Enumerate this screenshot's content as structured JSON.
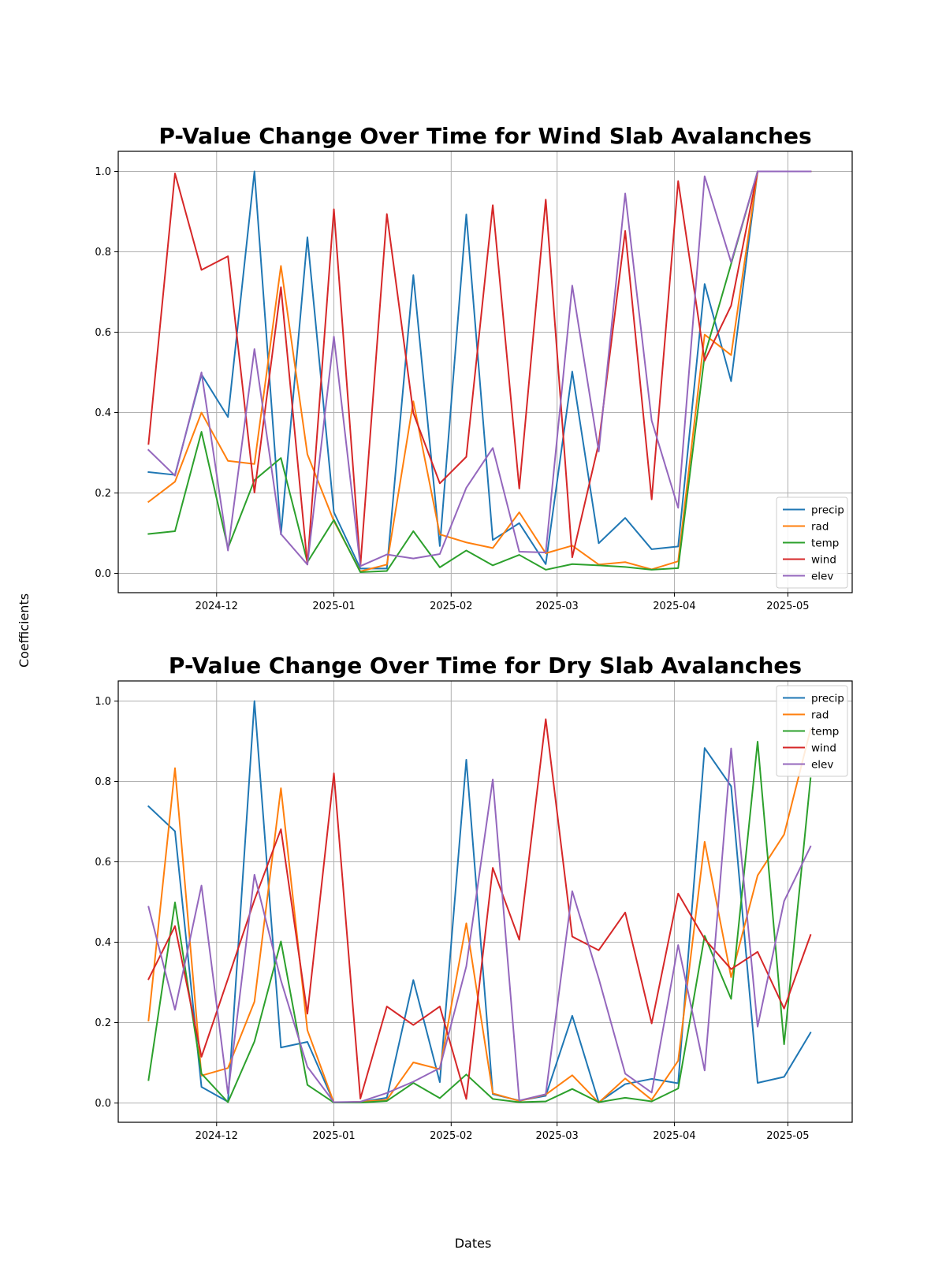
{
  "figure": {
    "xlabel": "Dates",
    "ylabel": "Coefficients"
  },
  "chart_data": [
    {
      "type": "line",
      "title": "P-Value Change Over Time for Wind Slab Avalanches",
      "x": [
        "2024-11-13",
        "2024-11-20",
        "2024-11-27",
        "2024-12-04",
        "2024-12-11",
        "2024-12-18",
        "2024-12-25",
        "2025-01-01",
        "2025-01-08",
        "2025-01-15",
        "2025-01-22",
        "2025-01-29",
        "2025-02-05",
        "2025-02-12",
        "2025-02-19",
        "2025-02-26",
        "2025-03-05",
        "2025-03-12",
        "2025-03-19",
        "2025-03-26",
        "2025-04-02",
        "2025-04-09",
        "2025-04-16",
        "2025-04-23",
        "2025-04-30",
        "2025-05-07"
      ],
      "x_ticks": [
        "2024-12",
        "2025-01",
        "2025-02",
        "2025-03",
        "2025-04",
        "2025-05"
      ],
      "y_ticks": [
        "0.0",
        "0.2",
        "0.4",
        "0.6",
        "0.8",
        "1.0"
      ],
      "ylim": [
        -0.048,
        1.05
      ],
      "xlim": [
        "2024-11-05",
        "2025-05-18"
      ],
      "grid": true,
      "legend_position": "lower-right",
      "series": [
        {
          "name": "precip",
          "color": "#1f77b4",
          "values": [
            0.252,
            0.245,
            0.495,
            0.389,
            1.0,
            0.097,
            0.836,
            0.152,
            0.012,
            0.012,
            0.742,
            0.068,
            0.893,
            0.083,
            0.125,
            0.023,
            0.502,
            0.075,
            0.138,
            0.06,
            0.067,
            0.72,
            0.478,
            1.0,
            1.0,
            1.0
          ]
        },
        {
          "name": "rad",
          "color": "#ff7f0e",
          "values": [
            0.178,
            0.228,
            0.4,
            0.28,
            0.272,
            0.765,
            0.296,
            0.13,
            0.005,
            0.022,
            0.428,
            0.097,
            0.077,
            0.063,
            0.152,
            0.05,
            0.069,
            0.022,
            0.028,
            0.01,
            0.03,
            0.594,
            0.543,
            1.0,
            1.0,
            1.0
          ]
        },
        {
          "name": "temp",
          "color": "#2ca02c",
          "values": [
            0.098,
            0.105,
            0.352,
            0.063,
            0.232,
            0.287,
            0.028,
            0.133,
            0.003,
            0.006,
            0.105,
            0.015,
            0.057,
            0.02,
            0.046,
            0.009,
            0.023,
            0.02,
            0.016,
            0.009,
            0.013,
            0.542,
            0.77,
            1.0,
            1.0,
            1.0
          ]
        },
        {
          "name": "wind",
          "color": "#d62728",
          "values": [
            0.322,
            0.995,
            0.755,
            0.789,
            0.201,
            0.712,
            0.022,
            0.906,
            0.018,
            0.894,
            0.399,
            0.224,
            0.29,
            0.916,
            0.211,
            0.93,
            0.04,
            0.323,
            0.852,
            0.184,
            0.976,
            0.529,
            0.666,
            1.0,
            1.0,
            1.0
          ]
        },
        {
          "name": "elev",
          "color": "#9467bd",
          "values": [
            0.307,
            0.243,
            0.5,
            0.057,
            0.558,
            0.098,
            0.022,
            0.589,
            0.018,
            0.047,
            0.037,
            0.048,
            0.213,
            0.312,
            0.054,
            0.052,
            0.716,
            0.303,
            0.945,
            0.38,
            0.163,
            0.988,
            0.774,
            1.0,
            1.0,
            1.0
          ]
        }
      ]
    },
    {
      "type": "line",
      "title": "P-Value Change Over Time for Dry Slab Avalanches",
      "x": [
        "2024-11-13",
        "2024-11-20",
        "2024-11-27",
        "2024-12-04",
        "2024-12-11",
        "2024-12-18",
        "2024-12-25",
        "2025-01-01",
        "2025-01-08",
        "2025-01-15",
        "2025-01-22",
        "2025-01-29",
        "2025-02-05",
        "2025-02-12",
        "2025-02-19",
        "2025-02-26",
        "2025-03-05",
        "2025-03-12",
        "2025-03-19",
        "2025-03-26",
        "2025-04-02",
        "2025-04-09",
        "2025-04-16",
        "2025-04-23",
        "2025-04-30",
        "2025-05-07"
      ],
      "x_ticks": [
        "2024-12",
        "2025-01",
        "2025-02",
        "2025-03",
        "2025-04",
        "2025-05"
      ],
      "y_ticks": [
        "0.0",
        "0.2",
        "0.4",
        "0.6",
        "0.8",
        "1.0"
      ],
      "ylim": [
        -0.048,
        1.05
      ],
      "xlim": [
        "2024-11-05",
        "2025-05-18"
      ],
      "grid": true,
      "legend_position": "upper-right",
      "series": [
        {
          "name": "precip",
          "color": "#1f77b4",
          "values": [
            0.738,
            0.676,
            0.04,
            0.003,
            1.0,
            0.138,
            0.152,
            0.001,
            0.002,
            0.013,
            0.306,
            0.052,
            0.854,
            0.022,
            0.006,
            0.018,
            0.217,
            0.002,
            0.047,
            0.06,
            0.049,
            0.883,
            0.788,
            0.05,
            0.065,
            0.175
          ]
        },
        {
          "name": "rad",
          "color": "#ff7f0e",
          "values": [
            0.205,
            0.833,
            0.068,
            0.087,
            0.252,
            0.783,
            0.181,
            0.001,
            0.003,
            0.008,
            0.101,
            0.084,
            0.447,
            0.024,
            0.005,
            0.021,
            0.069,
            0.001,
            0.061,
            0.008,
            0.105,
            0.65,
            0.313,
            0.566,
            0.668,
            0.93
          ]
        },
        {
          "name": "temp",
          "color": "#2ca02c",
          "values": [
            0.057,
            0.499,
            0.073,
            0.002,
            0.153,
            0.402,
            0.045,
            0.001,
            0.001,
            0.005,
            0.05,
            0.012,
            0.071,
            0.01,
            0.002,
            0.004,
            0.035,
            0.002,
            0.013,
            0.004,
            0.036,
            0.416,
            0.259,
            0.899,
            0.146,
            0.808
          ]
        },
        {
          "name": "wind",
          "color": "#d62728",
          "values": [
            0.308,
            0.44,
            0.115,
            0.309,
            0.505,
            0.681,
            0.222,
            0.82,
            0.011,
            0.24,
            0.194,
            0.24,
            0.01,
            0.585,
            0.406,
            0.955,
            0.414,
            0.38,
            0.474,
            0.198,
            0.521,
            0.408,
            0.333,
            0.376,
            0.235,
            0.418
          ]
        },
        {
          "name": "elev",
          "color": "#9467bd",
          "values": [
            0.488,
            0.232,
            0.541,
            0.023,
            0.568,
            0.305,
            0.09,
            0.002,
            0.003,
            0.025,
            0.053,
            0.087,
            0.34,
            0.805,
            0.006,
            0.022,
            0.527,
            0.31,
            0.073,
            0.026,
            0.393,
            0.081,
            0.882,
            0.19,
            0.502,
            0.638
          ]
        }
      ]
    }
  ]
}
